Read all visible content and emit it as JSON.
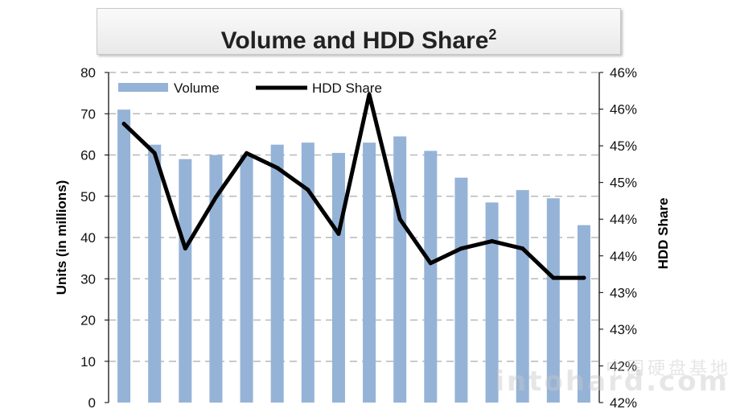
{
  "chart_data": {
    "type": "bar+line",
    "title": "Volume and HDD Share",
    "title_footnote": "2",
    "ylabel": "Units (in millions)",
    "y2label": "HDD Share",
    "ylim": [
      0,
      80
    ],
    "y_ticks": [
      "0",
      "10",
      "20",
      "30",
      "40",
      "50",
      "60",
      "70",
      "80"
    ],
    "y2_ticks": [
      "42%",
      "42%",
      "43%",
      "43%",
      "44%",
      "44%",
      "45%",
      "45%",
      "46%",
      "46%"
    ],
    "y2_tick_values": [
      42.0,
      42.5,
      43.0,
      43.5,
      44.0,
      44.5,
      45.0,
      45.5,
      46.0,
      46.5
    ],
    "y2lim": [
      42.0,
      46.5
    ],
    "grid": true,
    "legend_position": "top-left",
    "series": [
      {
        "name": "Volume",
        "kind": "bar",
        "color": "#95b3d7",
        "values": [
          71,
          62.5,
          59,
          60,
          60,
          62.5,
          63,
          60.5,
          63,
          64.5,
          61,
          54.5,
          48.5,
          51.5,
          49.5,
          43
        ]
      },
      {
        "name": "HDD Share",
        "kind": "line",
        "axis": "right",
        "color": "#000000",
        "values": [
          45.8,
          45.4,
          44.1,
          44.8,
          45.4,
          45.2,
          44.9,
          44.3,
          46.2,
          44.5,
          43.9,
          44.1,
          44.2,
          44.1,
          43.7,
          43.7
        ]
      }
    ]
  },
  "watermark": {
    "cn": "中国硬盘基地",
    "en": "intohard.com"
  }
}
